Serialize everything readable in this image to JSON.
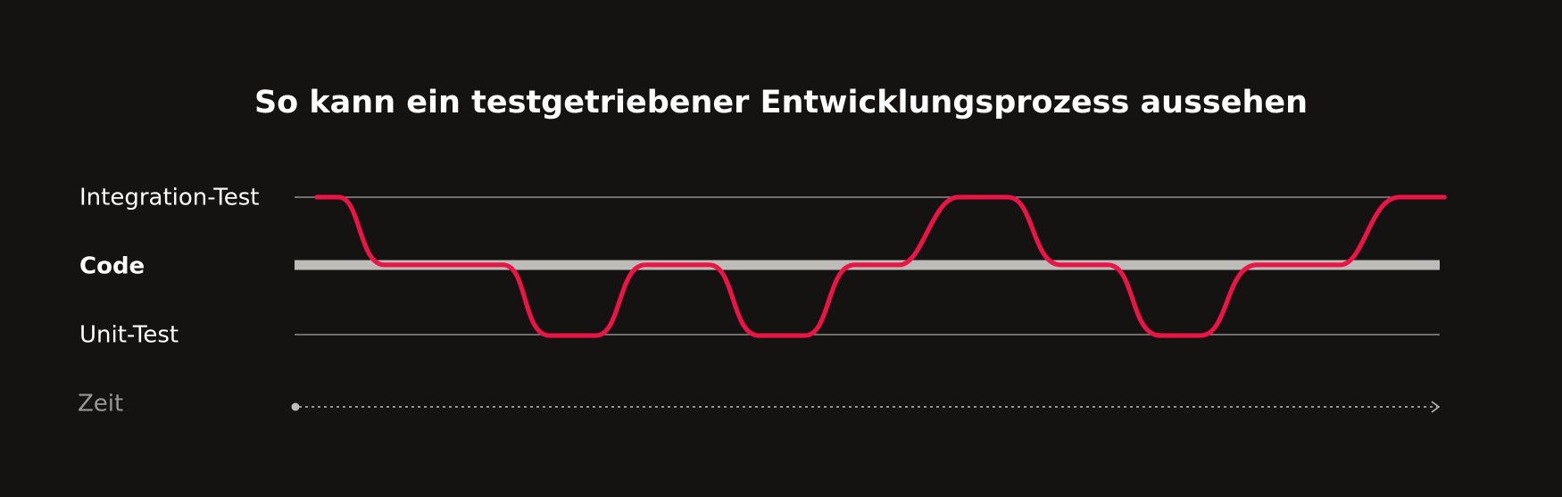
{
  "title": "So kann ein testgetriebener Entwicklungsprozess aussehen",
  "levels": [
    "Integration-Test",
    "Code",
    "Unit-Test"
  ],
  "time_axis": "Zeit"
}
